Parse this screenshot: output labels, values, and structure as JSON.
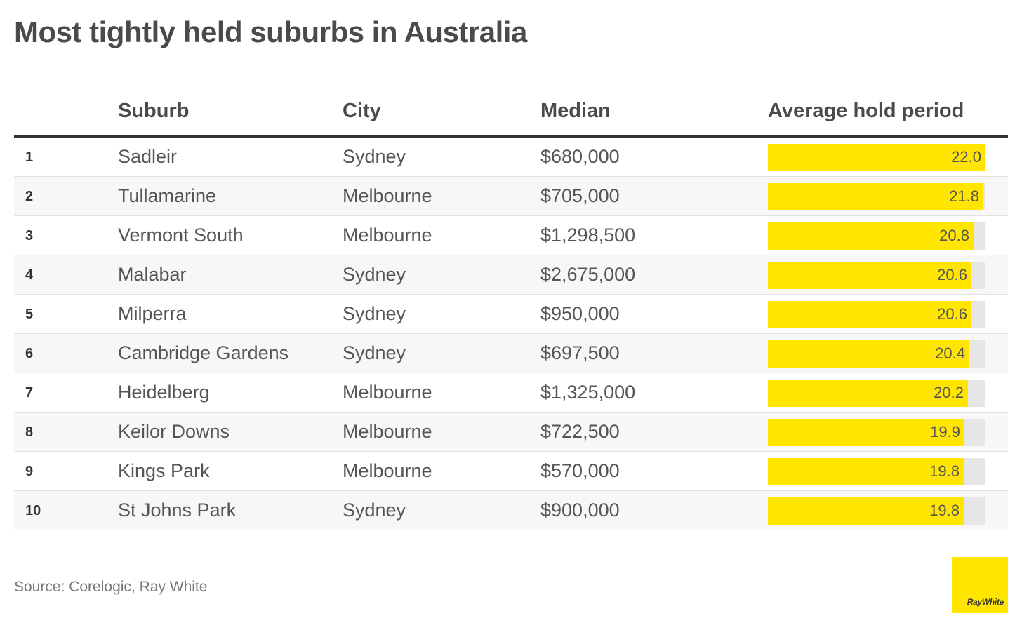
{
  "title": "Most tightly held suburbs in Australia",
  "source": "Source: Corelogic, Ray White",
  "logo_text": "RayWhite",
  "colors": {
    "bar": "#ffe500",
    "track": "#e6e6e6",
    "text": "#4a4a4a"
  },
  "chart_data": {
    "type": "table",
    "title": "Most tightly held suburbs in Australia",
    "columns": [
      "",
      "Suburb",
      "City",
      "Median",
      "Average hold period"
    ],
    "bar_max": 22.0,
    "rows": [
      {
        "rank": "1",
        "suburb": "Sadleir",
        "city": "Sydney",
        "median": "$680,000",
        "hold": 22.0,
        "hold_label": "22.0"
      },
      {
        "rank": "2",
        "suburb": "Tullamarine",
        "city": "Melbourne",
        "median": "$705,000",
        "hold": 21.8,
        "hold_label": "21.8"
      },
      {
        "rank": "3",
        "suburb": "Vermont South",
        "city": "Melbourne",
        "median": "$1,298,500",
        "hold": 20.8,
        "hold_label": "20.8"
      },
      {
        "rank": "4",
        "suburb": "Malabar",
        "city": "Sydney",
        "median": "$2,675,000",
        "hold": 20.6,
        "hold_label": "20.6"
      },
      {
        "rank": "5",
        "suburb": "Milperra",
        "city": "Sydney",
        "median": "$950,000",
        "hold": 20.6,
        "hold_label": "20.6"
      },
      {
        "rank": "6",
        "suburb": "Cambridge Gardens",
        "city": "Sydney",
        "median": "$697,500",
        "hold": 20.4,
        "hold_label": "20.4"
      },
      {
        "rank": "7",
        "suburb": "Heidelberg",
        "city": "Melbourne",
        "median": "$1,325,000",
        "hold": 20.2,
        "hold_label": "20.2"
      },
      {
        "rank": "8",
        "suburb": "Keilor Downs",
        "city": "Melbourne",
        "median": "$722,500",
        "hold": 19.9,
        "hold_label": "19.9"
      },
      {
        "rank": "9",
        "suburb": "Kings Park",
        "city": "Melbourne",
        "median": "$570,000",
        "hold": 19.8,
        "hold_label": "19.8"
      },
      {
        "rank": "10",
        "suburb": "St Johns Park",
        "city": "Sydney",
        "median": "$900,000",
        "hold": 19.8,
        "hold_label": "19.8"
      }
    ]
  }
}
